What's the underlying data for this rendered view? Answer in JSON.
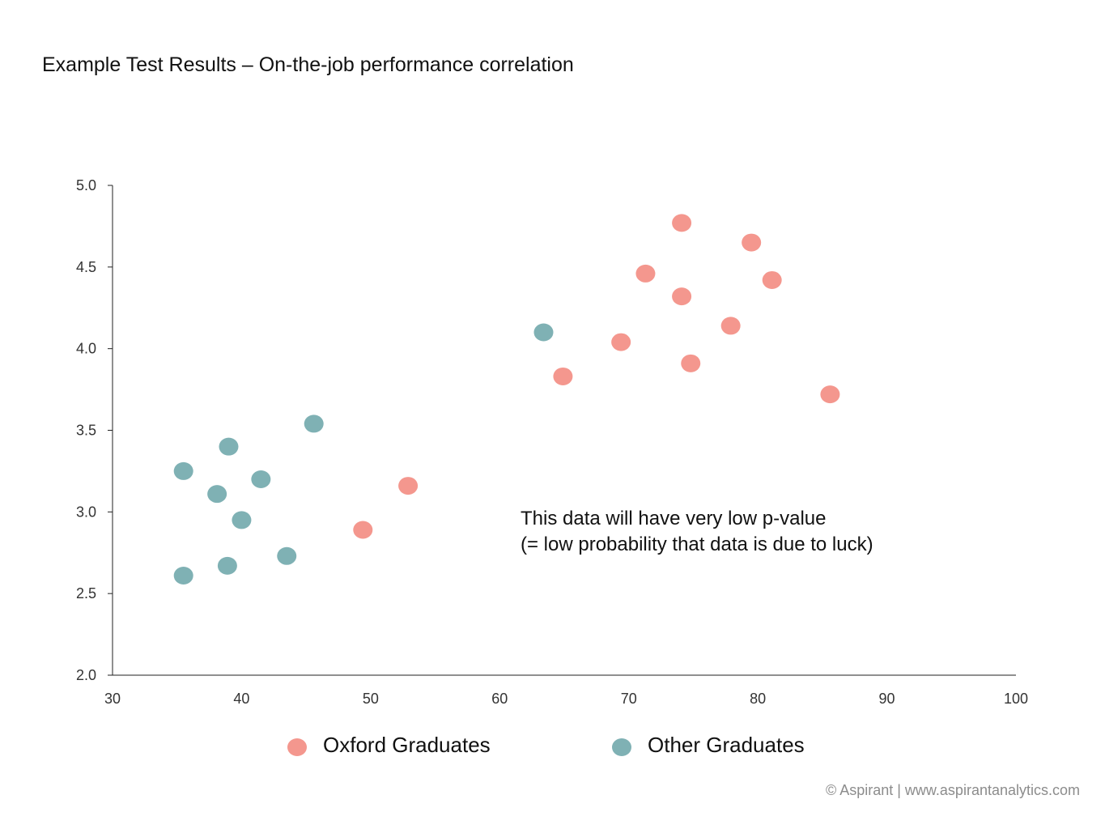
{
  "page": {
    "title": "Example Test Results – On-the-job performance correlation",
    "footer": "© Aspirant | www.aspirantanalytics.com"
  },
  "chart_data": {
    "type": "scatter",
    "title": "Example Test Results – On-the-job performance correlation",
    "xlabel": "",
    "ylabel": "",
    "xlim": [
      30,
      100
    ],
    "ylim": [
      2.0,
      5.0
    ],
    "x_ticks": [
      "30",
      "40",
      "50",
      "60",
      "70",
      "80",
      "90",
      "100"
    ],
    "y_ticks": [
      "2.0",
      "2.5",
      "3.0",
      "3.5",
      "4.0",
      "4.5",
      "5.0"
    ],
    "grid": false,
    "legend_position": "bottom",
    "annotation": [
      "This data will have very low p-value",
      "(= low probability that data is due to luck)"
    ],
    "series": [
      {
        "name": "Oxford Graduates",
        "color": "#f4978e",
        "points": [
          {
            "x": 74.1,
            "y": 4.77
          },
          {
            "x": 79.5,
            "y": 4.65
          },
          {
            "x": 71.3,
            "y": 4.46
          },
          {
            "x": 81.1,
            "y": 4.42
          },
          {
            "x": 74.1,
            "y": 4.32
          },
          {
            "x": 77.9,
            "y": 4.14
          },
          {
            "x": 69.4,
            "y": 4.04
          },
          {
            "x": 74.8,
            "y": 3.91
          },
          {
            "x": 64.9,
            "y": 3.83
          },
          {
            "x": 85.6,
            "y": 3.72
          },
          {
            "x": 52.9,
            "y": 3.16
          },
          {
            "x": 49.4,
            "y": 2.89
          }
        ]
      },
      {
        "name": "Other Graduates",
        "color": "#7fb1b4",
        "points": [
          {
            "x": 63.4,
            "y": 4.1
          },
          {
            "x": 45.6,
            "y": 3.54
          },
          {
            "x": 39.0,
            "y": 3.4
          },
          {
            "x": 35.5,
            "y": 3.25
          },
          {
            "x": 41.5,
            "y": 3.2
          },
          {
            "x": 38.1,
            "y": 3.11
          },
          {
            "x": 40.0,
            "y": 2.95
          },
          {
            "x": 43.5,
            "y": 2.73
          },
          {
            "x": 38.9,
            "y": 2.67
          },
          {
            "x": 35.5,
            "y": 2.61
          }
        ]
      }
    ]
  }
}
